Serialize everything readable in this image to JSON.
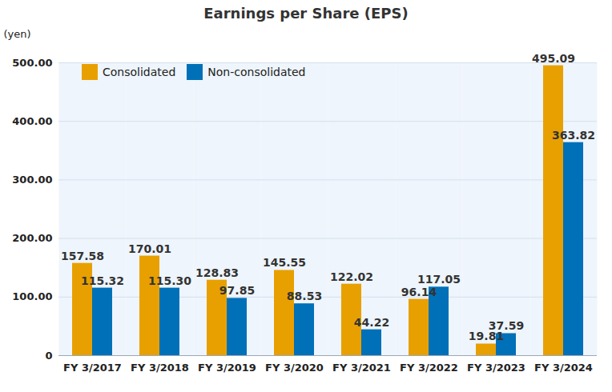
{
  "chart_data": {
    "type": "bar",
    "title": "Earnings per Share (EPS)",
    "ylabel": "(yen)",
    "categories": [
      "FY 3/2017",
      "FY 3/2018",
      "FY 3/2019",
      "FY 3/2020",
      "FY 3/2021",
      "FY 3/2022",
      "FY 3/2023",
      "FY 3/2024"
    ],
    "series": [
      {
        "name": "Consolidated",
        "color": "#e8a000",
        "values": [
          157.58,
          170.01,
          128.83,
          145.55,
          122.02,
          96.14,
          19.81,
          495.09
        ],
        "value_labels": [
          "157.58",
          "170.01",
          "128.83",
          "145.55",
          "122.02",
          "96.14",
          "19.81",
          "495.09"
        ]
      },
      {
        "name": "Non-consolidated",
        "color": "#0070b8",
        "values": [
          115.32,
          115.3,
          97.85,
          88.53,
          44.22,
          117.05,
          37.59,
          363.82
        ],
        "value_labels": [
          "115.32",
          "115.30",
          "97.85",
          "88.53",
          "44.22",
          "117.05",
          "37.59",
          "363.82"
        ]
      }
    ],
    "ylim": [
      0,
      500
    ],
    "yticks": [
      0,
      {
        "value": 100,
        "label": "100.00"
      },
      {
        "value": 200,
        "label": "200.00"
      },
      {
        "value": 300,
        "label": "300.00"
      },
      {
        "value": 400,
        "label": "400.00"
      },
      {
        "value": 500,
        "label": "500.00"
      }
    ],
    "grid": true,
    "legend": "upper left",
    "data_labels": true
  }
}
